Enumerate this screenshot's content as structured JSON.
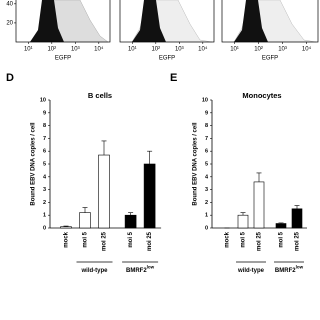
{
  "chart_data": [
    {
      "type": "histogram",
      "x_label": "EGFP",
      "xscale": "log",
      "xlim": [
        3,
        30000
      ],
      "xticks": [
        {
          "value": 10,
          "label": "10¹"
        },
        {
          "value": 100,
          "label": "10²"
        },
        {
          "value": 1000,
          "label": "10³"
        },
        {
          "value": 10000,
          "label": "10⁴"
        }
      ],
      "ylim": [
        0,
        44
      ],
      "yticks": [
        20,
        40
      ]
    },
    {
      "type": "histogram",
      "x_label": "EGFP",
      "xscale": "log",
      "xlim": [
        3,
        30000
      ],
      "xticks": [
        {
          "value": 10,
          "label": "10¹"
        },
        {
          "value": 100,
          "label": "10²"
        },
        {
          "value": 1000,
          "label": "10³"
        },
        {
          "value": 10000,
          "label": "10⁴"
        }
      ]
    },
    {
      "type": "histogram",
      "x_label": "EGFP",
      "xscale": "log",
      "xlim": [
        3,
        30000
      ],
      "xticks": [
        {
          "value": 10,
          "label": "10¹"
        },
        {
          "value": 100,
          "label": "10²"
        },
        {
          "value": 1000,
          "label": "10³"
        },
        {
          "value": 10000,
          "label": "10⁴"
        }
      ]
    },
    {
      "type": "bar",
      "panel_label": "D",
      "title": "B cells",
      "y_label": "Bound EBV DNA copies / cell",
      "categories": [
        "mock",
        "moi 5",
        "moi 25",
        "moi 5",
        "moi 25"
      ],
      "values": [
        0.1,
        1.2,
        5.7,
        1.0,
        5.0
      ],
      "errors": [
        0.05,
        0.4,
        1.1,
        0.2,
        1.0
      ],
      "colors": [
        "#ffffff",
        "#ffffff",
        "#ffffff",
        "#000000",
        "#000000"
      ],
      "groups": [
        {
          "label": "wild-type",
          "categories": [
            1,
            2
          ]
        },
        {
          "label": "BMRF2",
          "superscript": "low",
          "categories": [
            3,
            4
          ]
        }
      ],
      "ylim": [
        0,
        10
      ],
      "yticks": [
        0,
        1,
        2,
        3,
        4,
        5,
        6,
        7,
        8,
        9,
        10
      ]
    },
    {
      "type": "bar",
      "panel_label": "E",
      "title": "Monocytes",
      "y_label": "Bound EBV DNA copies / cell",
      "categories": [
        "mock",
        "moi 5",
        "moi 25",
        "moi 5",
        "moi 25"
      ],
      "values": [
        0,
        1.0,
        3.6,
        0.35,
        1.5
      ],
      "errors": [
        0,
        0.2,
        0.7,
        0.05,
        0.25
      ],
      "colors": [
        "#ffffff",
        "#ffffff",
        "#ffffff",
        "#000000",
        "#000000"
      ],
      "groups": [
        {
          "label": "wild-type",
          "categories": [
            1,
            2
          ]
        },
        {
          "label": "BMRF2",
          "superscript": "low",
          "categories": [
            3,
            4
          ]
        }
      ],
      "ylim": [
        0,
        10
      ],
      "yticks": [
        0,
        1,
        2,
        3,
        4,
        5,
        6,
        7,
        8,
        9,
        10
      ]
    }
  ]
}
